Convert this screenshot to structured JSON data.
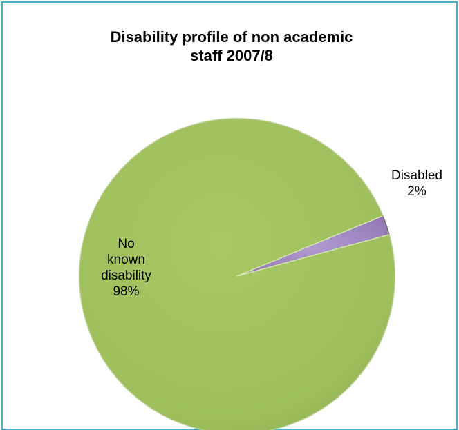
{
  "chart_data": {
    "type": "pie",
    "title_lines": [
      "Disability profile of non academic",
      "staff 2007/8"
    ],
    "slices": [
      {
        "label_lines": [
          "Disabled"
        ],
        "percent_label": "2%",
        "value": 2,
        "color": "#8064a2"
      },
      {
        "label_lines": [
          "No",
          "known",
          "disability"
        ],
        "percent_label": "98%",
        "value": 98,
        "color": "#9bbb59"
      }
    ],
    "legend": "none",
    "style": "3d-bevel"
  }
}
